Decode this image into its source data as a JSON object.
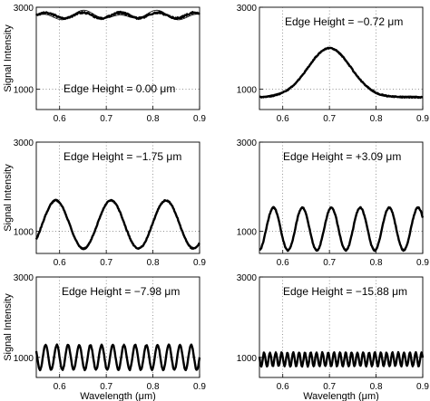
{
  "chart_data": [
    {
      "type": "line",
      "annotation": "Edge Height = 0.00 μm",
      "ylabel": "Signal Intensity",
      "xlabel": "",
      "xlim": [
        0.55,
        0.9
      ],
      "ylim": [
        500,
        3000
      ],
      "xticks": [
        "0.6",
        "0.7",
        "0.8",
        "0.9"
      ],
      "yticks": [
        "1000",
        "3000"
      ],
      "model": {
        "kind": "flat",
        "mean": 2800,
        "amplitude": 70,
        "period": 0.08
      },
      "series": [
        {
          "style": "measured"
        },
        {
          "style": "fit"
        }
      ]
    },
    {
      "type": "line",
      "annotation": "Edge Height = −0.72 μm",
      "ylabel": "",
      "xlabel": "",
      "xlim": [
        0.55,
        0.9
      ],
      "ylim": [
        500,
        3000
      ],
      "xticks": [
        "0.6",
        "0.7",
        "0.8",
        "0.9"
      ],
      "yticks": [
        "1000",
        "3000"
      ],
      "model": {
        "kind": "peak",
        "base": 800,
        "peak": 2000,
        "center": 0.7,
        "width": 0.065
      },
      "series": [
        {
          "style": "measured"
        },
        {
          "style": "fit"
        }
      ]
    },
    {
      "type": "line",
      "annotation": "Edge Height = −1.75 μm",
      "ylabel": "Signal Intensity",
      "xlabel": "",
      "xlim": [
        0.55,
        0.9
      ],
      "ylim": [
        500,
        3000
      ],
      "xticks": [
        "0.6",
        "0.7",
        "0.8",
        "0.9"
      ],
      "yticks": [
        "1000",
        "3000"
      ],
      "model": {
        "kind": "osc",
        "mean": 1150,
        "amplitude": 540,
        "phase_x": 0.592,
        "period": 0.118
      },
      "series": [
        {
          "style": "measured"
        },
        {
          "style": "fit"
        }
      ]
    },
    {
      "type": "line",
      "annotation": "Edge Height = +3.09 μm",
      "ylabel": "",
      "xlabel": "",
      "xlim": [
        0.55,
        0.9
      ],
      "ylim": [
        500,
        3000
      ],
      "xticks": [
        "0.6",
        "0.7",
        "0.8",
        "0.9"
      ],
      "yticks": [
        "1000",
        "3000"
      ],
      "model": {
        "kind": "osc",
        "mean": 1050,
        "amplitude": 480,
        "phase_x": 0.58,
        "period": 0.062
      },
      "series": [
        {
          "style": "measured"
        },
        {
          "style": "fit"
        }
      ]
    },
    {
      "type": "line",
      "annotation": "Edge Height = −7.98 μm",
      "ylabel": "Signal Intensity",
      "xlabel": "Wavelength (μm)",
      "xlim": [
        0.55,
        0.9
      ],
      "ylim": [
        500,
        3000
      ],
      "xticks": [
        "0.6",
        "0.7",
        "0.8",
        "0.9"
      ],
      "yticks": [
        "1000",
        "3000"
      ],
      "model": {
        "kind": "osc",
        "mean": 1000,
        "amplitude": 310,
        "phase_x": 0.57,
        "period": 0.024
      },
      "series": [
        {
          "style": "measured"
        },
        {
          "style": "fit"
        }
      ]
    },
    {
      "type": "line",
      "annotation": "Edge Height = −15.88 μm",
      "ylabel": "",
      "xlabel": "Wavelength (μm)",
      "xlim": [
        0.55,
        0.9
      ],
      "ylim": [
        500,
        3000
      ],
      "xticks": [
        "0.6",
        "0.7",
        "0.8",
        "0.9"
      ],
      "yticks": [
        "1000",
        "3000"
      ],
      "model": {
        "kind": "osc",
        "mean": 950,
        "amplitude": 170,
        "phase_x": 0.56,
        "period": 0.0125
      },
      "series": [
        {
          "style": "measured"
        },
        {
          "style": "fit"
        }
      ]
    }
  ]
}
